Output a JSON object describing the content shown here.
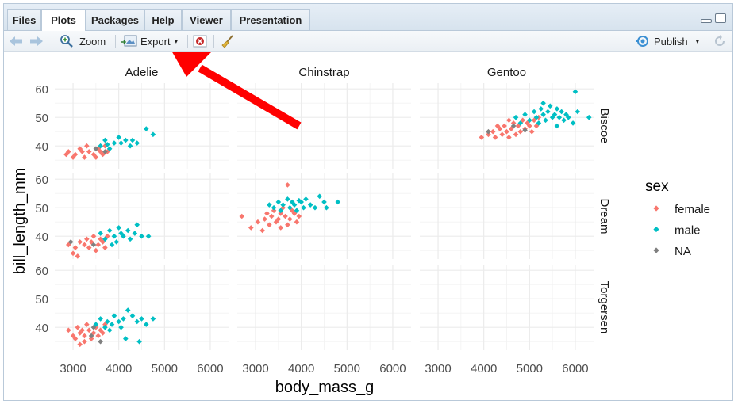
{
  "tabs": [
    {
      "label": "Files",
      "active": false
    },
    {
      "label": "Plots",
      "active": true
    },
    {
      "label": "Packages",
      "active": false
    },
    {
      "label": "Help",
      "active": false
    },
    {
      "label": "Viewer",
      "active": false
    },
    {
      "label": "Presentation",
      "active": false
    }
  ],
  "toolbar": {
    "zoom_label": "Zoom",
    "export_label": "Export",
    "export_caret": "▾",
    "publish_label": "Publish",
    "publish_caret": "▾"
  },
  "colors": {
    "female": "#f8766d",
    "male": "#00bfc4",
    "na": "#7f7f7f",
    "arrow": "#ff0000",
    "panel_grid": "#ebebeb"
  },
  "chart_data": {
    "type": "scatter",
    "xlabel": "body_mass_g",
    "ylabel": "bill_length_mm",
    "xticks": [
      "3000",
      "4000",
      "5000",
      "6000"
    ],
    "yticks": [
      "40",
      "50",
      "60"
    ],
    "xlim": [
      2600,
      6400
    ],
    "ylim": [
      32,
      62
    ],
    "col_facets": [
      "Adelie",
      "Chinstrap",
      "Gentoo"
    ],
    "row_facets": [
      "Biscoe",
      "Dream",
      "Torgersen"
    ],
    "legend": {
      "title": "sex",
      "entries": [
        "female",
        "male",
        "NA"
      ],
      "position": "right"
    },
    "panels": [
      {
        "species": "Adelie",
        "island": "Biscoe",
        "series": [
          {
            "name": "female",
            "points": [
              [
                2850,
                37
              ],
              [
                2900,
                38
              ],
              [
                3000,
                36
              ],
              [
                3050,
                37
              ],
              [
                3150,
                39
              ],
              [
                3200,
                38
              ],
              [
                3250,
                36
              ],
              [
                3300,
                40
              ],
              [
                3350,
                38
              ],
              [
                3450,
                37
              ],
              [
                3500,
                36
              ],
              [
                3550,
                39
              ],
              [
                3600,
                38
              ],
              [
                3650,
                37
              ],
              [
                3700,
                40
              ],
              [
                3750,
                38
              ]
            ]
          },
          {
            "name": "male",
            "points": [
              [
                3600,
                40
              ],
              [
                3700,
                42
              ],
              [
                3800,
                39
              ],
              [
                3900,
                41
              ],
              [
                4000,
                43
              ],
              [
                4050,
                41
              ],
              [
                4150,
                42
              ],
              [
                4250,
                40
              ],
              [
                4300,
                42
              ],
              [
                4400,
                41
              ],
              [
                4600,
                46
              ],
              [
                4750,
                44
              ],
              [
                3750,
                40.5
              ]
            ]
          },
          {
            "name": "NA",
            "points": [
              [
                3500,
                39
              ],
              [
                3700,
                38
              ]
            ]
          }
        ]
      },
      {
        "species": "Chinstrap",
        "island": "Biscoe",
        "series": []
      },
      {
        "species": "Gentoo",
        "island": "Biscoe",
        "series": [
          {
            "name": "female",
            "points": [
              [
                3950,
                43
              ],
              [
                4100,
                44
              ],
              [
                4200,
                45
              ],
              [
                4250,
                43
              ],
              [
                4350,
                46
              ],
              [
                4400,
                44
              ],
              [
                4450,
                47
              ],
              [
                4500,
                45
              ],
              [
                4550,
                43
              ],
              [
                4600,
                46
              ],
              [
                4650,
                48
              ],
              [
                4700,
                44
              ],
              [
                4750,
                47
              ],
              [
                4800,
                45
              ],
              [
                4850,
                49
              ],
              [
                4900,
                46
              ],
              [
                4950,
                48
              ],
              [
                5000,
                47
              ],
              [
                5050,
                45
              ],
              [
                5100,
                49
              ],
              [
                5150,
                47
              ],
              [
                5200,
                50
              ],
              [
                4300,
                47
              ],
              [
                4550,
                49
              ]
            ]
          },
          {
            "name": "male",
            "points": [
              [
                4700,
                50
              ],
              [
                4800,
                48
              ],
              [
                4900,
                51
              ],
              [
                5000,
                49
              ],
              [
                5100,
                52
              ],
              [
                5150,
                50
              ],
              [
                5200,
                48
              ],
              [
                5250,
                53
              ],
              [
                5300,
                51
              ],
              [
                5350,
                49
              ],
              [
                5400,
                52
              ],
              [
                5450,
                54
              ],
              [
                5500,
                50
              ],
              [
                5550,
                51
              ],
              [
                5600,
                53
              ],
              [
                5650,
                50
              ],
              [
                5700,
                52
              ],
              [
                5750,
                49
              ],
              [
                5800,
                51
              ],
              [
                5850,
                50
              ],
              [
                5950,
                48
              ],
              [
                6000,
                59
              ],
              [
                6050,
                52
              ],
              [
                6300,
                50
              ],
              [
                5300,
                55
              ],
              [
                5600,
                47
              ]
            ]
          },
          {
            "name": "NA",
            "points": [
              [
                4100,
                45
              ],
              [
                4650,
                47
              ],
              [
                4900,
                45.5
              ]
            ]
          }
        ]
      },
      {
        "species": "Adelie",
        "island": "Dream",
        "series": [
          {
            "name": "female",
            "points": [
              [
                2900,
                37
              ],
              [
                3000,
                34
              ],
              [
                3050,
                36
              ],
              [
                3150,
                38
              ],
              [
                3250,
                37
              ],
              [
                3300,
                39
              ],
              [
                3350,
                36
              ],
              [
                3400,
                38
              ],
              [
                3450,
                40
              ],
              [
                3500,
                35
              ],
              [
                3550,
                37
              ],
              [
                3600,
                39
              ],
              [
                3650,
                38
              ],
              [
                3700,
                36
              ],
              [
                3750,
                40
              ],
              [
                3100,
                33
              ]
            ]
          },
          {
            "name": "male",
            "points": [
              [
                3600,
                41
              ],
              [
                3700,
                39
              ],
              [
                3800,
                42
              ],
              [
                3900,
                40
              ],
              [
                3950,
                38
              ],
              [
                4000,
                43
              ],
              [
                4050,
                41
              ],
              [
                4100,
                40
              ],
              [
                4200,
                42
              ],
              [
                4250,
                39
              ],
              [
                4350,
                41
              ],
              [
                4400,
                44
              ],
              [
                4500,
                40
              ],
              [
                4650,
                40
              ],
              [
                3850,
                37
              ]
            ]
          },
          {
            "name": "NA",
            "points": [
              [
                2950,
                38
              ],
              [
                3450,
                37
              ]
            ]
          }
        ]
      },
      {
        "species": "Chinstrap",
        "island": "Dream",
        "series": [
          {
            "name": "female",
            "points": [
              [
                2700,
                47
              ],
              [
                2900,
                43
              ],
              [
                3050,
                45
              ],
              [
                3200,
                46
              ],
              [
                3250,
                48
              ],
              [
                3300,
                44
              ],
              [
                3350,
                47
              ],
              [
                3400,
                49
              ],
              [
                3450,
                45
              ],
              [
                3500,
                46
              ],
              [
                3550,
                48
              ],
              [
                3600,
                50
              ],
              [
                3650,
                47
              ],
              [
                3700,
                44
              ],
              [
                3750,
                46
              ],
              [
                3800,
                49
              ],
              [
                3850,
                48
              ],
              [
                3900,
                45
              ],
              [
                3950,
                47
              ],
              [
                3700,
                58
              ],
              [
                3150,
                42
              ],
              [
                3550,
                43
              ]
            ]
          },
          {
            "name": "male",
            "points": [
              [
                3300,
                51
              ],
              [
                3400,
                50
              ],
              [
                3500,
                52
              ],
              [
                3550,
                49
              ],
              [
                3600,
                51
              ],
              [
                3700,
                53
              ],
              [
                3750,
                50
              ],
              [
                3800,
                52
              ],
              [
                3850,
                51
              ],
              [
                3900,
                49
              ],
              [
                4000,
                52
              ],
              [
                4050,
                50
              ],
              [
                4100,
                53
              ],
              [
                4200,
                51
              ],
              [
                4300,
                50
              ],
              [
                4400,
                54
              ],
              [
                4500,
                52
              ],
              [
                4550,
                50
              ],
              [
                4800,
                52
              ],
              [
                3950,
                52.5
              ]
            ]
          },
          {
            "name": "NA",
            "points": []
          }
        ]
      },
      {
        "species": "Gentoo",
        "island": "Dream",
        "series": []
      },
      {
        "species": "Adelie",
        "island": "Torgersen",
        "series": [
          {
            "name": "female",
            "points": [
              [
                2900,
                39
              ],
              [
                3000,
                37
              ],
              [
                3050,
                36
              ],
              [
                3100,
                40
              ],
              [
                3150,
                38
              ],
              [
                3200,
                39
              ],
              [
                3250,
                37
              ],
              [
                3300,
                41
              ],
              [
                3350,
                39
              ],
              [
                3400,
                36
              ],
              [
                3450,
                38
              ],
              [
                3500,
                40
              ],
              [
                3550,
                37
              ],
              [
                3600,
                39
              ],
              [
                3650,
                38
              ],
              [
                3700,
                41
              ],
              [
                3250,
                35
              ],
              [
                3150,
                34
              ]
            ]
          },
          {
            "name": "male",
            "points": [
              [
                3500,
                41
              ],
              [
                3600,
                43
              ],
              [
                3700,
                40
              ],
              [
                3750,
                42
              ],
              [
                3800,
                39
              ],
              [
                3850,
                41
              ],
              [
                3900,
                44
              ],
              [
                4000,
                42
              ],
              [
                4050,
                40
              ],
              [
                4100,
                43
              ],
              [
                4200,
                46
              ],
              [
                4300,
                44
              ],
              [
                4400,
                42
              ],
              [
                4450,
                35
              ],
              [
                4500,
                43
              ],
              [
                4600,
                41
              ],
              [
                4750,
                43
              ],
              [
                4150,
                36
              ]
            ]
          },
          {
            "name": "NA",
            "points": [
              [
                3400,
                37
              ],
              [
                3600,
                35
              ],
              [
                3450,
                40
              ]
            ]
          }
        ]
      },
      {
        "species": "Chinstrap",
        "island": "Torgersen",
        "series": []
      },
      {
        "species": "Gentoo",
        "island": "Torgersen",
        "series": []
      }
    ]
  }
}
